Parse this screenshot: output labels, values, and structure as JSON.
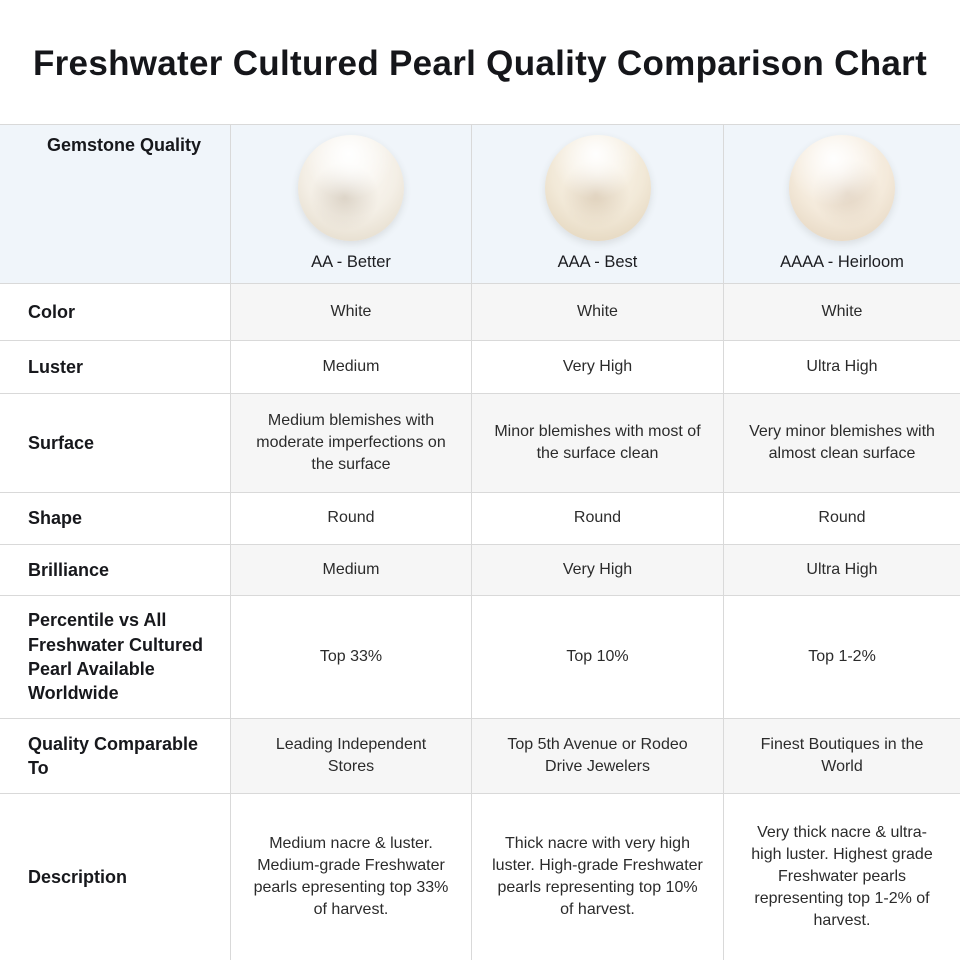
{
  "title": "Freshwater Cultured Pearl Quality Comparison Chart",
  "colors": {
    "header_row_bg": "#f0f5fa",
    "shaded_cell_bg": "#f6f6f6",
    "grid_border": "#d9d9d9",
    "title_text": "#15161a",
    "body_text": "#2b2b2b",
    "pearl_cream": "#f2e9d8"
  },
  "table": {
    "header": {
      "row_label": "Gemstone Quality",
      "columns": [
        {
          "label": "AA - Better",
          "pearl_icon": "pearl-image-aa"
        },
        {
          "label": "AAA - Best",
          "pearl_icon": "pearl-image-aaa"
        },
        {
          "label": "AAAA - Heirloom",
          "pearl_icon": "pearl-image-aaaa"
        }
      ]
    },
    "rows": [
      {
        "label": "Color",
        "shaded": true,
        "values": [
          "White",
          "White",
          "White"
        ]
      },
      {
        "label": "Luster",
        "shaded": false,
        "values": [
          "Medium",
          "Very High",
          "Ultra High"
        ]
      },
      {
        "label": "Surface",
        "shaded": true,
        "values": [
          "Medium blemishes with moderate imperfections on the surface",
          "Minor blemishes with most of the surface clean",
          "Very minor blemishes with almost clean surface"
        ]
      },
      {
        "label": "Shape",
        "shaded": false,
        "values": [
          "Round",
          "Round",
          "Round"
        ]
      },
      {
        "label": "Brilliance",
        "shaded": true,
        "values": [
          "Medium",
          "Very High",
          "Ultra High"
        ]
      },
      {
        "label": "Percentile vs All Freshwater Cultured Pearl Available Worldwide",
        "shaded": false,
        "values": [
          "Top 33%",
          "Top 10%",
          "Top 1-2%"
        ]
      },
      {
        "label": "Quality Comparable To",
        "shaded": true,
        "values": [
          "Leading Independent Stores",
          "Top 5th Avenue or Rodeo Drive Jewelers",
          "Finest Boutiques in the World"
        ]
      },
      {
        "label": "Description",
        "shaded": false,
        "values": [
          "Medium nacre & luster. Medium-grade Freshwater pearls epresenting top 33% of harvest.",
          "Thick nacre with very high luster. High-grade Freshwater pearls representing top 10% of harvest.",
          "Very thick nacre & ultra-high luster. Highest grade Freshwater pearls representing top 1-2% of harvest."
        ]
      }
    ]
  },
  "chart_data": {
    "type": "table",
    "title": "Freshwater Cultured Pearl Quality Comparison Chart",
    "columns": [
      "Gemstone Quality",
      "AA - Better",
      "AAA - Best",
      "AAAA - Heirloom"
    ],
    "rows": [
      [
        "Color",
        "White",
        "White",
        "White"
      ],
      [
        "Luster",
        "Medium",
        "Very High",
        "Ultra High"
      ],
      [
        "Surface",
        "Medium blemishes with moderate imperfections on the surface",
        "Minor blemishes with most of the surface clean",
        "Very minor blemishes with almost clean surface"
      ],
      [
        "Shape",
        "Round",
        "Round",
        "Round"
      ],
      [
        "Brilliance",
        "Medium",
        "Very High",
        "Ultra High"
      ],
      [
        "Percentile vs All Freshwater Cultured Pearl Available Worldwide",
        "Top 33%",
        "Top 10%",
        "Top 1-2%"
      ],
      [
        "Quality Comparable To",
        "Leading Independent Stores",
        "Top 5th Avenue or Rodeo Drive Jewelers",
        "Finest Boutiques in the World"
      ],
      [
        "Description",
        "Medium nacre & luster. Medium-grade Freshwater pearls epresenting top 33% of harvest.",
        "Thick nacre with very high luster. High-grade Freshwater pearls representing top 10% of harvest.",
        "Very thick nacre & ultra-high luster. Highest grade Freshwater pearls representing top 1-2% of harvest."
      ]
    ],
    "legend_position": "none",
    "grid": true
  }
}
